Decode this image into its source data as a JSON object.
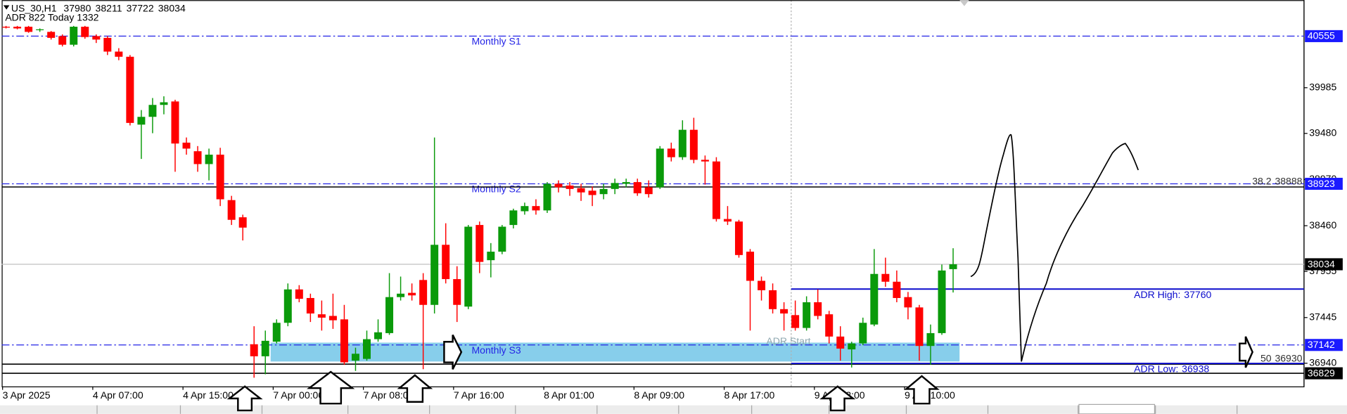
{
  "chart_data": {
    "type": "candlestick",
    "symbol": "US_30,H1",
    "info": "ADR 822  Today 1332",
    "adr_start_label": "ADR Start",
    "categories": [
      "3 Apr 2025",
      null,
      null,
      null,
      null,
      null,
      null,
      null,
      "4 Apr 07:00",
      null,
      null,
      null,
      null,
      null,
      null,
      null,
      "4 Apr 15:00",
      null,
      null,
      null,
      null,
      null,
      null,
      null,
      "7 Apr 00:00",
      null,
      null,
      null,
      null,
      null,
      null,
      null,
      "7 Apr 08:00",
      null,
      null,
      null,
      null,
      null,
      null,
      null,
      "7 Apr 16:00",
      null,
      null,
      null,
      null,
      null,
      null,
      null,
      "8 Apr 01:00",
      null,
      null,
      null,
      null,
      null,
      null,
      null,
      "8 Apr 09:00",
      null,
      null,
      null,
      null,
      null,
      null,
      null,
      "8 Apr 17:00",
      null,
      null,
      null,
      null,
      null,
      null,
      null,
      "9 Apr 02:00",
      null,
      null,
      null,
      null,
      null,
      null,
      null,
      "9 Apr 10:00",
      null,
      null,
      null,
      null
    ],
    "open": [
      40659,
      40659,
      40659,
      40621,
      40602,
      40555,
      40460,
      40659,
      40555,
      40536,
      40384,
      40327,
      39577,
      39663,
      39795,
      39833,
      39378,
      39283,
      39141,
      39245,
      38743,
      38553,
      37150,
      37017,
      37178,
      37387,
      37756,
      37661,
      37481,
      37463,
      37425,
      36969,
      36988,
      37206,
      37273,
      37671,
      37718,
      37860,
      37585,
      38249,
      37870,
      37566,
      38468,
      38079,
      38173,
      38468,
      38620,
      38677,
      38629,
      38923,
      38904,
      38875,
      38847,
      38809,
      38866,
      38923,
      38942,
      38885,
      38885,
      39312,
      39217,
      39520,
      39188,
      39170,
      38534,
      38506,
      38173,
      37851,
      37747,
      37538,
      37472,
      37330,
      37614,
      37481,
      37235,
      37093,
      37159,
      37368,
      37927,
      37841,
      37671,
      37557,
      37131,
      37273,
      37980
    ],
    "high": [
      40668,
      40668,
      40668,
      40640,
      40611,
      40574,
      40668,
      40668,
      40574,
      40555,
      40422,
      40346,
      39738,
      39871,
      39890,
      39852,
      39435,
      39340,
      39312,
      39321,
      38790,
      38582,
      37349,
      37301,
      37425,
      37822,
      37803,
      37709,
      37633,
      37709,
      37585,
      37112,
      37301,
      37425,
      37936,
      37898,
      37822,
      37936,
      39435,
      38487,
      38012,
      38468,
      38506,
      38268,
      38468,
      38648,
      38715,
      38752,
      38942,
      38961,
      38942,
      38923,
      38894,
      38923,
      38980,
      38980,
      38980,
      38961,
      39340,
      39378,
      39625,
      39653,
      39236,
      39217,
      38677,
      38525,
      38202,
      37898,
      37822,
      37614,
      37633,
      37680,
      37756,
      37519,
      37349,
      37178,
      37444,
      38202,
      38107,
      37965,
      37728,
      37585,
      37368,
      38031,
      38211
    ],
    "low": [
      40640,
      40630,
      40592,
      40602,
      40517,
      40441,
      40441,
      40526,
      40479,
      40346,
      40289,
      39568,
      39198,
      39482,
      39691,
      39056,
      39245,
      39056,
      38961,
      38677,
      38468,
      38297,
      36780,
      36818,
      37159,
      37349,
      37614,
      37396,
      37301,
      37320,
      36922,
      36855,
      36969,
      37178,
      37254,
      37633,
      37633,
      36874,
      37490,
      37822,
      37396,
      37538,
      37936,
      37889,
      38145,
      38430,
      38582,
      38582,
      38601,
      38828,
      38790,
      38734,
      38677,
      38752,
      38809,
      38885,
      38790,
      38771,
      38866,
      39170,
      39188,
      39150,
      38914,
      38506,
      38468,
      38107,
      37301,
      37633,
      37490,
      37301,
      37301,
      37301,
      37425,
      37159,
      36969,
      36893,
      37140,
      37349,
      37785,
      37614,
      37425,
      36969,
      36922,
      37254,
      37722
    ],
    "close": [
      40649,
      40640,
      40602,
      40630,
      40536,
      40460,
      40659,
      40545,
      40517,
      40384,
      40327,
      39596,
      39663,
      39795,
      39824,
      39368,
      39312,
      39141,
      39245,
      38752,
      38525,
      38439,
      37017,
      37188,
      37387,
      37756,
      37652,
      37490,
      37444,
      37415,
      36950,
      37045,
      37206,
      37282,
      37671,
      37709,
      37690,
      37585,
      38249,
      37870,
      37585,
      38449,
      38060,
      38173,
      38449,
      38629,
      38677,
      38629,
      38923,
      38885,
      38866,
      38828,
      38799,
      38866,
      38932,
      38942,
      38818,
      38809,
      39312,
      39217,
      39520,
      39188,
      39170,
      38534,
      38506,
      38136,
      37851,
      37747,
      37538,
      37490,
      37330,
      37614,
      37463,
      37235,
      37102,
      37159,
      37387,
      37927,
      37841,
      37661,
      37557,
      37131,
      37273,
      37965,
      38034
    ],
    "colors": {
      "up": "#0a9a0a",
      "down": "#ff0000",
      "current": "#c0c0c0"
    },
    "ylim": [
      36684,
      40953
    ],
    "yticks": [
      36940,
      37445,
      37955,
      38460,
      38970,
      39480,
      39985
    ],
    "monthly_levels": [
      {
        "label": "Monthly S1",
        "value": 40555,
        "color": "#2424e6"
      },
      {
        "label": "Monthly S2",
        "value": 38923,
        "color": "#2424e6"
      },
      {
        "label": "Monthly S3",
        "value": 37142,
        "color": "#2424e6"
      }
    ],
    "fib_levels": [
      {
        "label": "38.2",
        "value": 38888,
        "color": "#000000"
      },
      {
        "label": "50",
        "value": 36930,
        "color": "#000000"
      }
    ],
    "adr_levels": [
      {
        "label": "ADR High:",
        "value": 37760,
        "color": "#0a0acc"
      },
      {
        "label": "ADR Low:",
        "value": 36938,
        "color": "#0a0acc"
      }
    ],
    "price_lines": [
      {
        "value": 36829,
        "color": "#000000"
      }
    ]
  }
}
